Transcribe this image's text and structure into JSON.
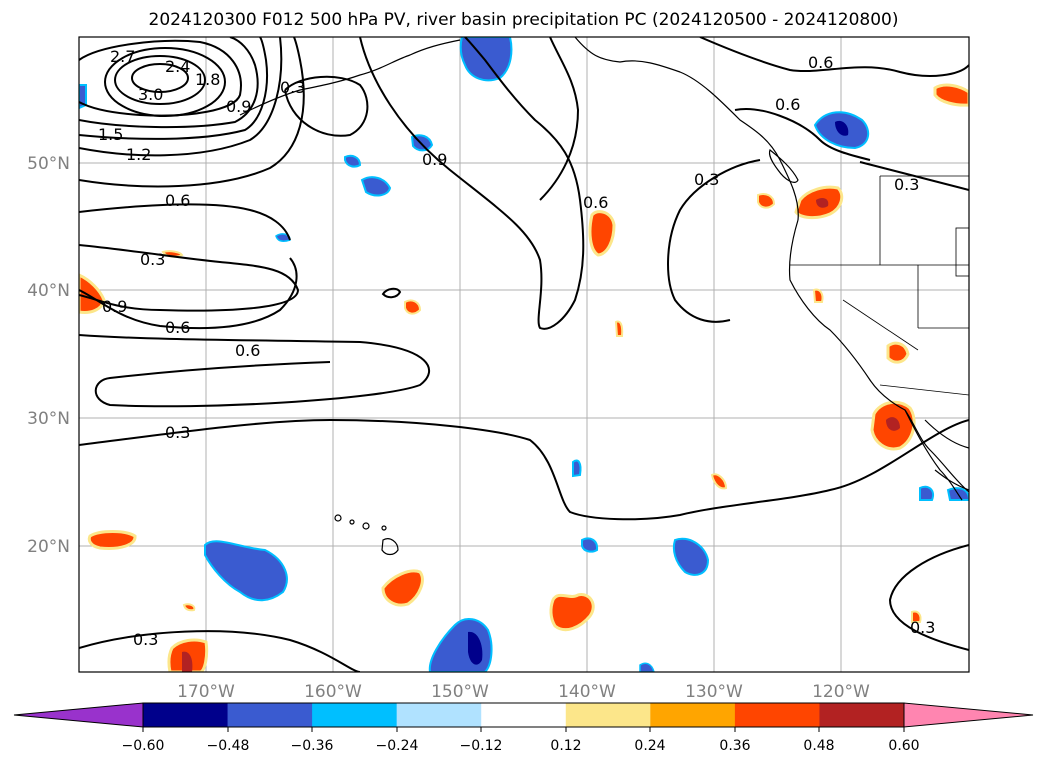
{
  "title": "2024120300 F012 500 hPa PV, river basin precipitation PC (2024120500 - 2024120800)",
  "map": {
    "lon_labels": [
      "170°W",
      "160°W",
      "150°W",
      "140°W",
      "130°W",
      "120°W"
    ],
    "lat_labels": [
      "50°N",
      "40°N",
      "30°N",
      "20°N"
    ],
    "contour_labels": [
      "2.7",
      "2.4",
      "1.8",
      "3.0",
      "1.5",
      "1.2",
      "0.6",
      "0.3",
      "0.9",
      "0.6",
      "0.6",
      "0.3",
      "0.3",
      "0.3",
      "0.9",
      "0.6",
      "0.3",
      "0.6",
      "0.6",
      "0.3",
      "0.3",
      "0.9"
    ]
  },
  "colorbar": {
    "labels": [
      "−0.60",
      "−0.48",
      "−0.36",
      "−0.24",
      "−0.12",
      "0.12",
      "0.24",
      "0.36",
      "0.48",
      "0.60"
    ],
    "colors": [
      "#9932cc",
      "#00008b",
      "#3a5bd0",
      "#00bfff",
      "#b0e2ff",
      "#ffffff",
      "#fce68a",
      "#ffa500",
      "#ff4500",
      "#b22222",
      "#ff85b0"
    ]
  },
  "colors": {
    "neg_strong": "#00008b",
    "neg_mid": "#3a5bd0",
    "neg_light": "#00bfff",
    "pos_light": "#fce68a",
    "pos_mid": "#ffa500",
    "pos_strong": "#ff4500",
    "pos_dark": "#b22222",
    "grid": "#b0b0b0"
  }
}
